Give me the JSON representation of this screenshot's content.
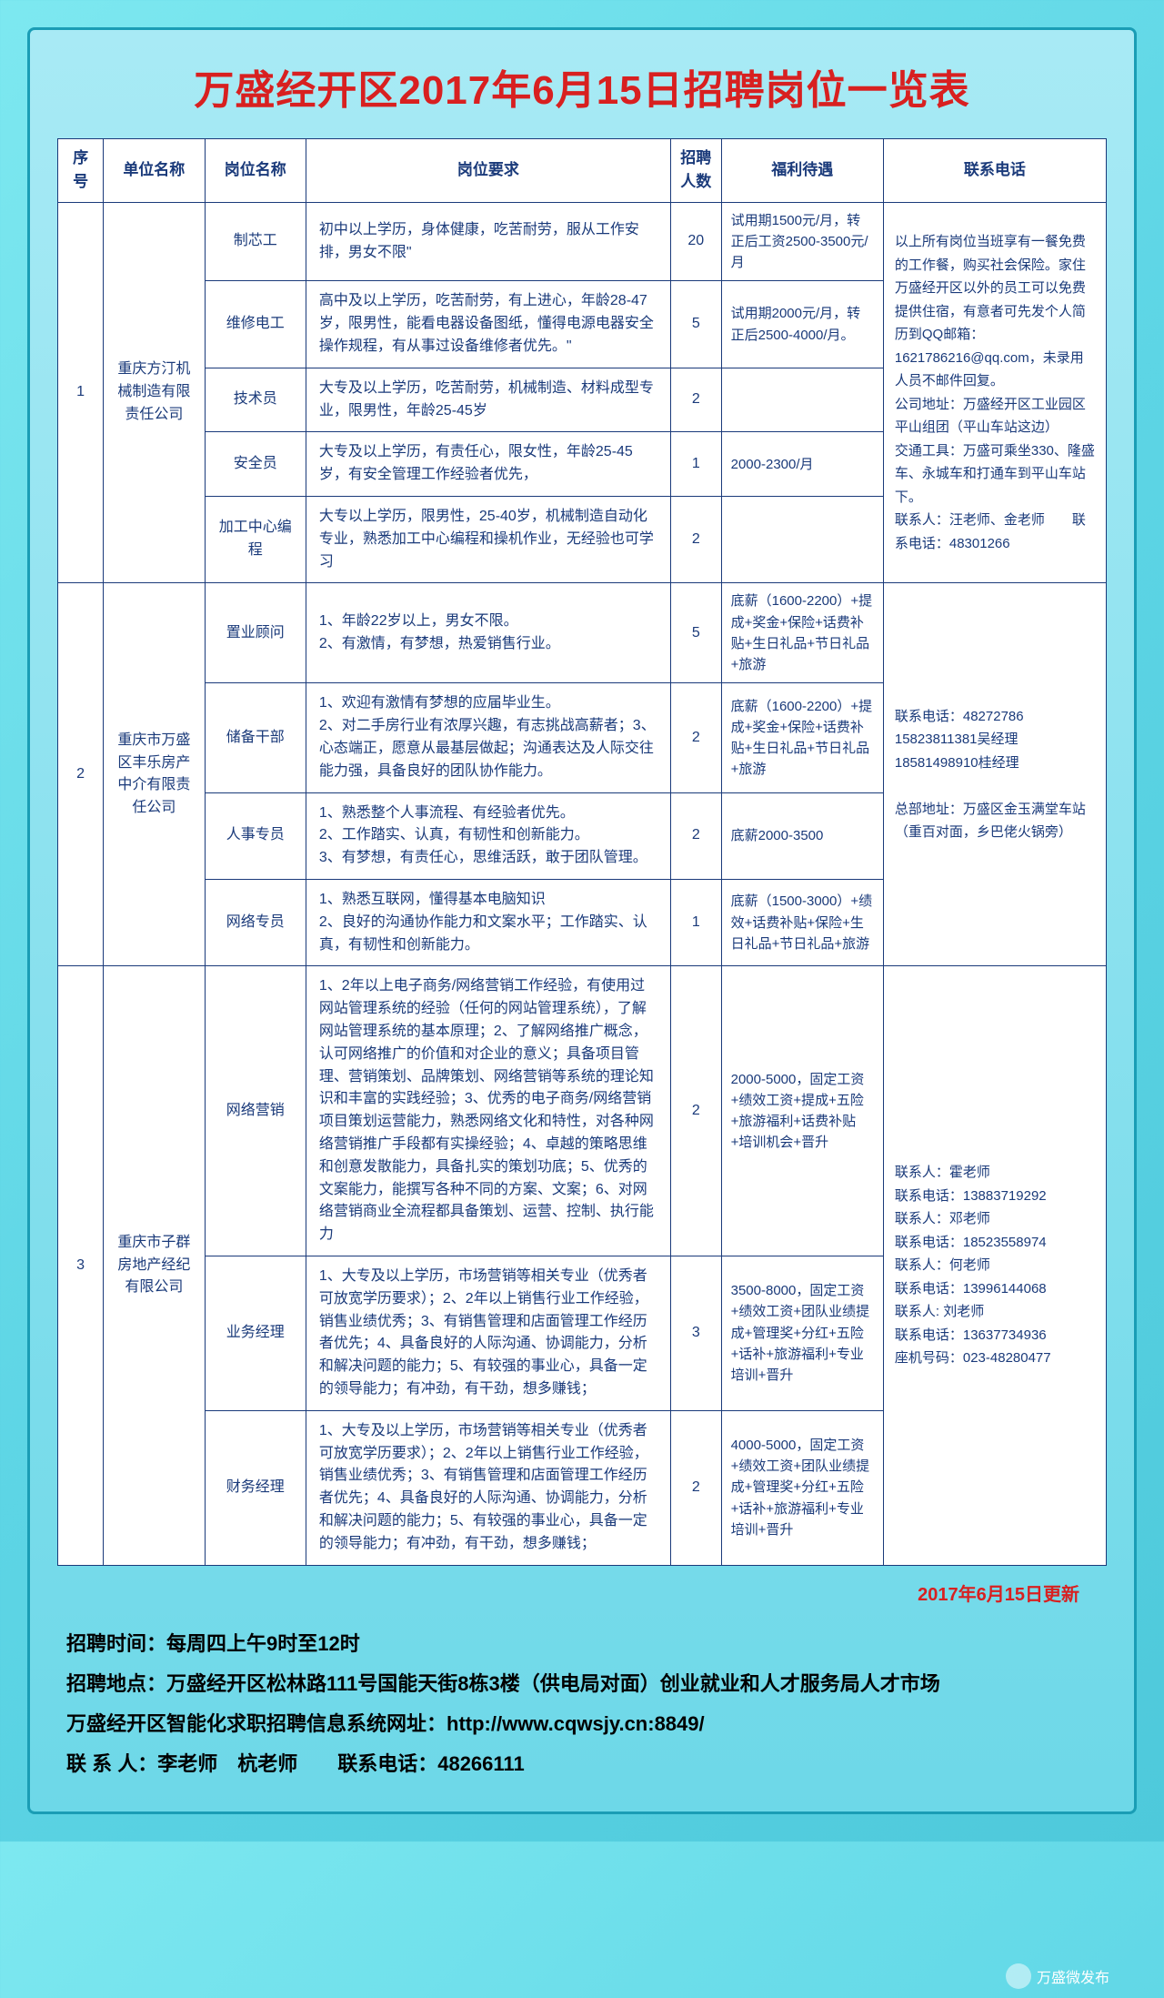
{
  "title": "万盛经开区2017年6月15日招聘岗位一览表",
  "headers": {
    "idx": "序号",
    "company": "单位名称",
    "position": "岗位名称",
    "req": "岗位要求",
    "count": "招聘人数",
    "benefit": "福利待遇",
    "contact": "联系电话"
  },
  "update_note": "2017年6月15日更新",
  "footer": {
    "l1": "招聘时间：每周四上午9时至12时",
    "l2": "招聘地点：万盛经开区松林路111号国能天街8栋3楼（供电局对面）创业就业和人才服务局人才市场",
    "l3": "万盛经开区智能化求职招聘信息系统网址：http://www.cqwsjy.cn:8849/",
    "l4": "联 系 人：李老师　杭老师　　联系电话：48266111"
  },
  "wx_name": "万盛微发布",
  "groups": [
    {
      "idx": "1",
      "company": "重庆方汀机械制造有限责任公司",
      "contact": "以上所有岗位当班享有一餐免费的工作餐，购买社会保险。家住万盛经开区以外的员工可以免费提供住宿，有意者可先发个人简历到QQ邮箱：1621786216@qq.com，未录用人员不邮件回复。\n公司地址：万盛经开区工业园区平山组团（平山车站这边）\n交通工具：万盛可乘坐330、隆盛车、永城车和打通车到平山车站下。\n联系人：汪老师、金老师　　联系电话：48301266",
      "rows": [
        {
          "pos": "制芯工",
          "req": "初中以上学历，身体健康，吃苦耐劳，服从工作安排，男女不限\"",
          "count": "20",
          "benefit": "试用期1500元/月，转正后工资2500-3500元/月"
        },
        {
          "pos": "维修电工",
          "req": "高中及以上学历，吃苦耐劳，有上进心，年龄28-47岁，限男性，能看电器设备图纸，懂得电源电器安全操作规程，有从事过设备维修者优先。\"",
          "count": "5",
          "benefit": "试用期2000元/月，转正后2500-4000/月。"
        },
        {
          "pos": "技术员",
          "req": "大专及以上学历，吃苦耐劳，机械制造、材料成型专业，限男性，年龄25-45岁",
          "count": "2",
          "benefit": ""
        },
        {
          "pos": "安全员",
          "req": "大专及以上学历，有责任心，限女性，年龄25-45岁，有安全管理工作经验者优先，",
          "count": "1",
          "benefit": "2000-2300/月"
        },
        {
          "pos": "加工中心编程",
          "req": "大专以上学历，限男性，25-40岁，机械制造自动化专业，熟悉加工中心编程和操机作业，无经验也可学习",
          "count": "2",
          "benefit": ""
        }
      ]
    },
    {
      "idx": "2",
      "company": "重庆市万盛区丰乐房产中介有限责任公司",
      "contact": "联系电话：48272786\n15823811381吴经理\n18581498910桂经理\n\n总部地址：万盛区金玉满堂车站（重百对面，乡巴佬火锅旁）",
      "rows": [
        {
          "pos": "置业顾问",
          "req": "1、年龄22岁以上，男女不限。\n2、有激情，有梦想，热爱销售行业。",
          "count": "5",
          "benefit": "底薪（1600-2200）+提成+奖金+保险+话费补贴+生日礼品+节日礼品+旅游"
        },
        {
          "pos": "储备干部",
          "req": "1、欢迎有激情有梦想的应届毕业生。\n2、对二手房行业有浓厚兴趣，有志挑战高薪者；3、心态端正，愿意从最基层做起；沟通表达及人际交往能力强，具备良好的团队协作能力。",
          "count": "2",
          "benefit": "底薪（1600-2200）+提成+奖金+保险+话费补贴+生日礼品+节日礼品+旅游"
        },
        {
          "pos": "人事专员",
          "req": "1、熟悉整个人事流程、有经验者优先。\n2、工作踏实、认真，有韧性和创新能力。\n3、有梦想，有责任心，思维活跃，敢于团队管理。",
          "count": "2",
          "benefit": "底薪2000-3500"
        },
        {
          "pos": "网络专员",
          "req": "1、熟悉互联网，懂得基本电脑知识\n2、良好的沟通协作能力和文案水平；工作踏实、认真，有韧性和创新能力。",
          "count": "1",
          "benefit": "底薪（1500-3000）+绩效+话费补贴+保险+生日礼品+节日礼品+旅游"
        }
      ]
    },
    {
      "idx": "3",
      "company": "重庆市子群房地产经纪有限公司",
      "contact": "联系人：霍老师\n联系电话：13883719292\n联系人：邓老师\n联系电话：18523558974\n联系人：何老师\n联系电话：13996144068\n联系人:  刘老师\n联系电话：13637734936\n座机号码：023-48280477",
      "rows": [
        {
          "pos": "网络营销",
          "req": "1、2年以上电子商务/网络营销工作经验，有使用过网站管理系统的经验（任何的网站管理系统），了解网站管理系统的基本原理；2、了解网络推广概念，认可网络推广的价值和对企业的意义；具备项目管理、营销策划、品牌策划、网络营销等系统的理论知识和丰富的实践经验；3、优秀的电子商务/网络营销项目策划运营能力，熟悉网络文化和特性，对各种网络营销推广手段都有实操经验；4、卓越的策略思维和创意发散能力，具备扎实的策划功底；5、优秀的文案能力，能撰写各种不同的方案、文案；6、对网络营销商业全流程都具备策划、运营、控制、执行能力",
          "count": "2",
          "benefit": "2000-5000，固定工资+绩效工资+提成+五险+旅游福利+话费补贴+培训机会+晋升"
        },
        {
          "pos": "业务经理",
          "req": "1、大专及以上学历，市场营销等相关专业（优秀者可放宽学历要求）；2、2年以上销售行业工作经验，销售业绩优秀；3、有销售管理和店面管理工作经历者优先；4、具备良好的人际沟通、协调能力，分析和解决问题的能力；5、有较强的事业心，具备一定的领导能力；有冲劲，有干劲，想多赚钱；",
          "count": "3",
          "benefit": "3500-8000，固定工资+绩效工资+团队业绩提成+管理奖+分红+五险+话补+旅游福利+专业培训+晋升"
        },
        {
          "pos": "财务经理",
          "req": "1、大专及以上学历，市场营销等相关专业（优秀者可放宽学历要求）；2、2年以上销售行业工作经验，销售业绩优秀；3、有销售管理和店面管理工作经历者优先；4、具备良好的人际沟通、协调能力，分析和解决问题的能力；5、有较强的事业心，具备一定的领导能力；有冲劲，有干劲，想多赚钱；",
          "count": "2",
          "benefit": "4000-5000，固定工资+绩效工资+团队业绩提成+管理奖+分红+五险+话补+旅游福利+专业培训+晋升"
        }
      ]
    }
  ]
}
